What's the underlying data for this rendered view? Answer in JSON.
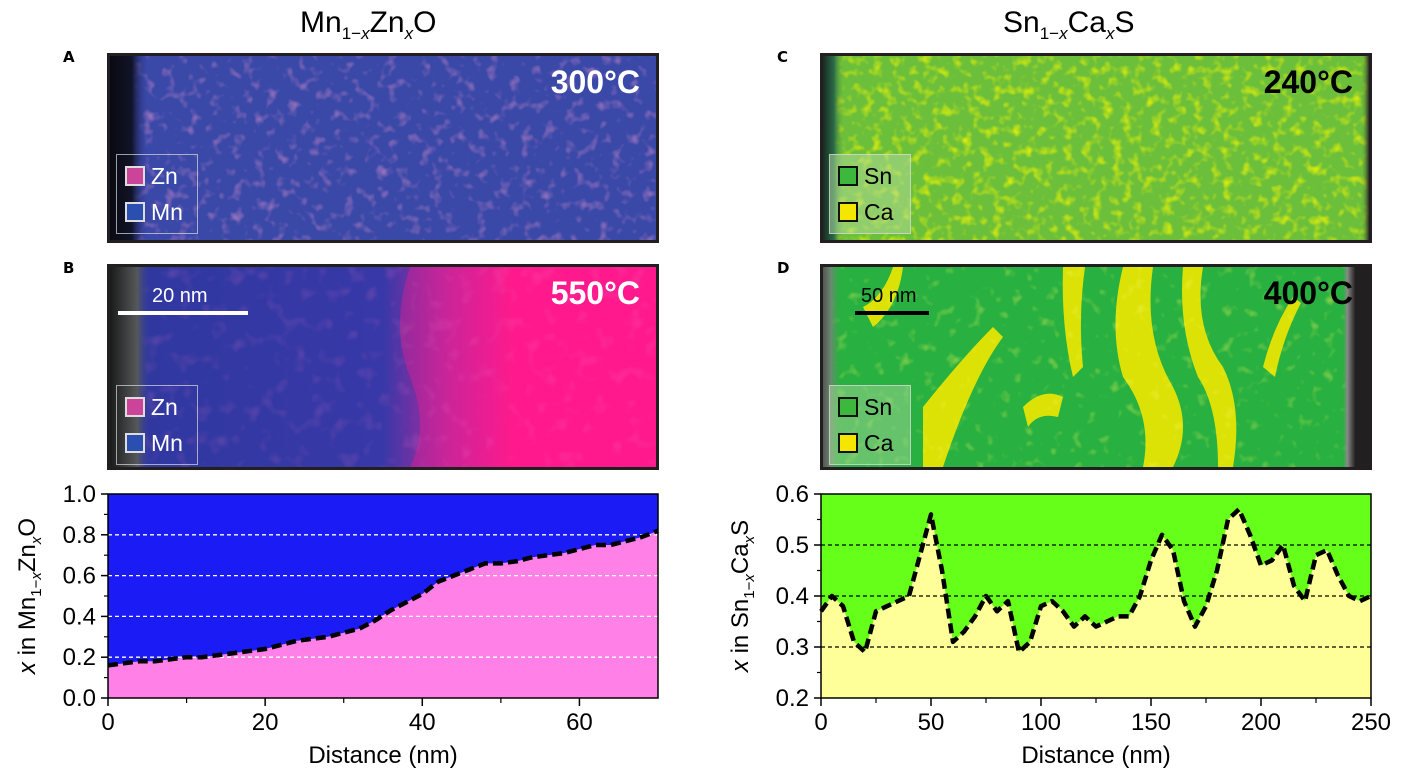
{
  "titles": {
    "left": {
      "base1": "Mn",
      "sub1": "1−",
      "subvar1": "x",
      "base2": "Zn",
      "subvar2": "x",
      "base3": "O"
    },
    "right": {
      "base1": "Sn",
      "sub1": "1−",
      "subvar1": "x",
      "base2": "Ca",
      "subvar2": "x",
      "base3": "S"
    }
  },
  "panels": [
    {
      "letter": "A",
      "temp": "300°C",
      "legend": [
        "Zn",
        "Mn"
      ],
      "swatch_colors": [
        "#cc4499",
        "#2a4fb0"
      ],
      "temp_color": "#ffffff"
    },
    {
      "letter": "B",
      "temp": "550°C",
      "legend": [
        "Zn",
        "Mn"
      ],
      "swatch_colors": [
        "#cc4499",
        "#2a4fb0"
      ],
      "temp_color": "#ffffff",
      "scalebar": "20 nm"
    },
    {
      "letter": "C",
      "temp": "240°C",
      "legend": [
        "Sn",
        "Ca"
      ],
      "swatch_colors": [
        "#3cb83c",
        "#f5e600"
      ],
      "temp_color": "#000000"
    },
    {
      "letter": "D",
      "temp": "400°C",
      "legend": [
        "Sn",
        "Ca"
      ],
      "swatch_colors": [
        "#3cb83c",
        "#f5e600"
      ],
      "temp_color": "#000000",
      "scalebar": "50 nm"
    }
  ],
  "colors": {
    "mn_blue": "#1b1bf5",
    "zn_pink": "#ff80e6",
    "sn_green": "#66ff1a",
    "ca_yellow": "#ffff99",
    "map_blue": "#3240a8",
    "map_pink": "#ff1a8c",
    "map_green": "#1ec040",
    "map_yellow": "#e8e800"
  },
  "chart_data": [
    {
      "type": "area",
      "xlabel": "Distance (nm)",
      "ylabel_parts": {
        "a": "x",
        "b": " in Mn",
        "c": "1−",
        "d": "x",
        "e": "Zn",
        "f": "x",
        "g": "O"
      },
      "xlim": [
        0,
        70
      ],
      "ylim": [
        0,
        1.0
      ],
      "xticks": [
        0,
        20,
        40,
        60
      ],
      "yticks": [
        0.0,
        0.2,
        0.4,
        0.6,
        0.8,
        1.0
      ],
      "ytick_labels": [
        "0.0",
        "0.2",
        "0.4",
        "0.6",
        "0.8",
        "1.0"
      ],
      "gridlines": [
        0.2,
        0.4,
        0.6,
        0.8
      ],
      "x": [
        0,
        2,
        4,
        6,
        8,
        10,
        12,
        14,
        16,
        18,
        20,
        22,
        24,
        26,
        28,
        30,
        32,
        34,
        36,
        38,
        40,
        42,
        44,
        46,
        48,
        50,
        52,
        54,
        56,
        58,
        60,
        62,
        64,
        66,
        68,
        70
      ],
      "y": [
        0.16,
        0.17,
        0.18,
        0.18,
        0.19,
        0.2,
        0.2,
        0.21,
        0.22,
        0.23,
        0.24,
        0.26,
        0.28,
        0.29,
        0.3,
        0.32,
        0.34,
        0.38,
        0.43,
        0.47,
        0.51,
        0.57,
        0.6,
        0.63,
        0.66,
        0.66,
        0.67,
        0.69,
        0.7,
        0.71,
        0.73,
        0.75,
        0.75,
        0.77,
        0.79,
        0.82
      ]
    },
    {
      "type": "area",
      "xlabel": "Distance (nm)",
      "ylabel_parts": {
        "a": "x",
        "b": " in Sn",
        "c": "1−",
        "d": "x",
        "e": "Ca",
        "f": "x",
        "g": "S"
      },
      "xlim": [
        0,
        250
      ],
      "ylim": [
        0.2,
        0.6
      ],
      "xticks": [
        0,
        50,
        100,
        150,
        200,
        250
      ],
      "yticks": [
        0.2,
        0.3,
        0.4,
        0.5,
        0.6
      ],
      "ytick_labels": [
        "0.2",
        "0.3",
        "0.4",
        "0.5",
        "0.6"
      ],
      "gridlines": [
        0.3,
        0.4,
        0.5
      ],
      "x": [
        0,
        5,
        10,
        15,
        20,
        25,
        30,
        35,
        40,
        45,
        50,
        55,
        60,
        65,
        70,
        75,
        80,
        85,
        90,
        95,
        100,
        105,
        110,
        115,
        120,
        125,
        130,
        135,
        140,
        145,
        150,
        155,
        160,
        165,
        170,
        175,
        180,
        185,
        190,
        195,
        200,
        205,
        210,
        215,
        220,
        225,
        230,
        235,
        240,
        245,
        250
      ],
      "y": [
        0.37,
        0.4,
        0.38,
        0.31,
        0.29,
        0.37,
        0.38,
        0.39,
        0.4,
        0.48,
        0.56,
        0.45,
        0.31,
        0.33,
        0.36,
        0.4,
        0.37,
        0.39,
        0.29,
        0.31,
        0.38,
        0.39,
        0.37,
        0.34,
        0.36,
        0.34,
        0.35,
        0.36,
        0.36,
        0.4,
        0.47,
        0.52,
        0.49,
        0.39,
        0.34,
        0.38,
        0.45,
        0.55,
        0.57,
        0.52,
        0.46,
        0.47,
        0.5,
        0.42,
        0.39,
        0.48,
        0.49,
        0.44,
        0.4,
        0.39,
        0.4
      ]
    }
  ]
}
